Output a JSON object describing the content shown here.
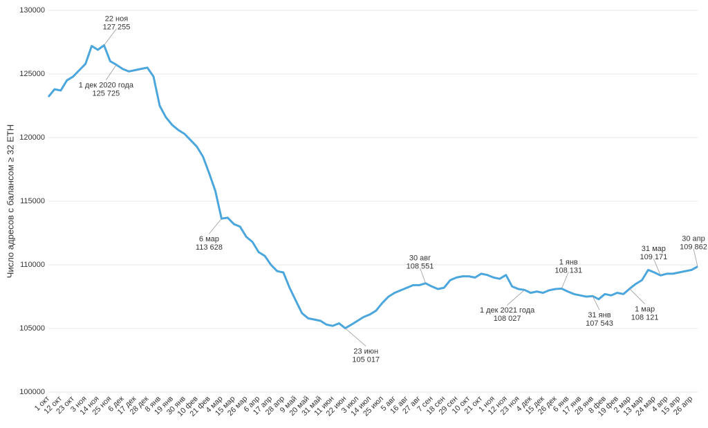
{
  "chart_data": {
    "type": "line",
    "y_label": "Число адресов с балансом ≥ 32 ETH",
    "color": "#4aa6dc",
    "grid": true,
    "ylim": [
      100000,
      130000
    ],
    "yticks": [
      100000,
      105000,
      110000,
      115000,
      120000,
      125000,
      130000
    ],
    "categories": [
      "1 окт",
      null,
      "12 окт",
      null,
      "23 окт",
      null,
      "3 ноя",
      null,
      "14 ноя",
      null,
      "25 ноя",
      null,
      "6 дек",
      null,
      "17 дек",
      null,
      "28 дек",
      null,
      "8 янв",
      null,
      "19 янв",
      null,
      "30 янв",
      null,
      "10 фев",
      null,
      "21 фев",
      null,
      "4 мар",
      null,
      "15 мар",
      null,
      "26 мар",
      null,
      "6 апр",
      null,
      "17 апр",
      null,
      "28 апр",
      null,
      "9 май",
      null,
      "20 май",
      null,
      "31 май",
      null,
      "11 июн",
      null,
      "22 июн",
      null,
      "3 июл",
      null,
      "14 июл",
      null,
      "25 июл",
      null,
      "5 авг",
      null,
      "16 авг",
      null,
      "27 авг",
      null,
      "7 сен",
      null,
      "18 сен",
      null,
      "29 сен",
      null,
      "10 окт",
      null,
      "21 окт",
      null,
      "1 ноя",
      null,
      "12 ноя",
      null,
      "23 ноя",
      null,
      "4 дек",
      null,
      "15 дек",
      null,
      "26 дек",
      null,
      "6 янв",
      null,
      "17 янв",
      null,
      "28 янв",
      null,
      "8 фев",
      null,
      "19 фев",
      null,
      "2 мар",
      null,
      "13 мар",
      null,
      "24 мар",
      null,
      "4 апр",
      null,
      "15 апр",
      null,
      "26 апр",
      null
    ],
    "values": [
      123200,
      123800,
      123700,
      124500,
      124800,
      125300,
      125800,
      127200,
      126900,
      127255,
      126000,
      125725,
      125400,
      125200,
      125300,
      125400,
      125500,
      124800,
      122500,
      121600,
      121000,
      120600,
      120300,
      119800,
      119300,
      118500,
      117200,
      115800,
      113628,
      113700,
      113200,
      113000,
      112200,
      111800,
      111000,
      110700,
      110000,
      109500,
      109400,
      108200,
      107200,
      106200,
      105800,
      105700,
      105600,
      105300,
      105200,
      105400,
      105017,
      105300,
      105600,
      105900,
      106100,
      106400,
      107000,
      107500,
      107800,
      108000,
      108200,
      108400,
      108400,
      108551,
      108300,
      108100,
      108200,
      108800,
      109000,
      109100,
      109100,
      109000,
      109300,
      109200,
      109000,
      108900,
      109200,
      108300,
      108100,
      108027,
      107800,
      107900,
      107800,
      108000,
      108100,
      108131,
      107900,
      107700,
      107600,
      107500,
      107543,
      107300,
      107700,
      107600,
      107800,
      107700,
      108121,
      108500,
      108800,
      109600,
      109400,
      109171,
      109300,
      109300,
      109400,
      109500,
      109600,
      109862
    ],
    "note_labels": [
      null,
      null,
      null,
      null,
      null,
      null,
      null,
      null,
      null,
      "22 ноя",
      null,
      "1 дек 2020 года",
      null,
      null,
      null,
      null,
      null,
      null,
      null,
      null,
      null,
      null,
      null,
      null,
      null,
      null,
      null,
      null,
      "6 мар",
      null,
      null,
      null,
      null,
      null,
      null,
      null,
      null,
      null,
      null,
      null,
      null,
      null,
      null,
      null,
      null,
      null,
      null,
      null,
      "23 июн",
      null,
      null,
      null,
      null,
      null,
      null,
      null,
      null,
      null,
      null,
      null,
      null,
      "30 авг",
      null,
      null,
      null,
      null,
      null,
      null,
      null,
      null,
      null,
      null,
      null,
      null,
      null,
      null,
      null,
      "1 дек 2021 года",
      null,
      null,
      null,
      null,
      null,
      "1 янв",
      null,
      null,
      null,
      null,
      "31 янв",
      null,
      null,
      null,
      null,
      null,
      "1 мар",
      null,
      null,
      null,
      null,
      "31 мар",
      null,
      null,
      null,
      null,
      null,
      "30 апр"
    ],
    "value_labels": [
      null,
      null,
      null,
      null,
      null,
      null,
      null,
      null,
      null,
      "127 255",
      null,
      "125 725",
      null,
      null,
      null,
      null,
      null,
      null,
      null,
      null,
      null,
      null,
      null,
      null,
      null,
      null,
      null,
      null,
      "113 628",
      null,
      null,
      null,
      null,
      null,
      null,
      null,
      null,
      null,
      null,
      null,
      null,
      null,
      null,
      null,
      null,
      null,
      null,
      null,
      "105 017",
      null,
      null,
      null,
      null,
      null,
      null,
      null,
      null,
      null,
      null,
      null,
      null,
      "108 551",
      null,
      null,
      null,
      null,
      null,
      null,
      null,
      null,
      null,
      null,
      null,
      null,
      null,
      null,
      null,
      "108 027",
      null,
      null,
      null,
      null,
      null,
      "108 131",
      null,
      null,
      null,
      null,
      "107 543",
      null,
      null,
      null,
      null,
      null,
      "108 121",
      null,
      null,
      null,
      null,
      "109 171",
      null,
      null,
      null,
      null,
      null,
      "109 862"
    ]
  }
}
